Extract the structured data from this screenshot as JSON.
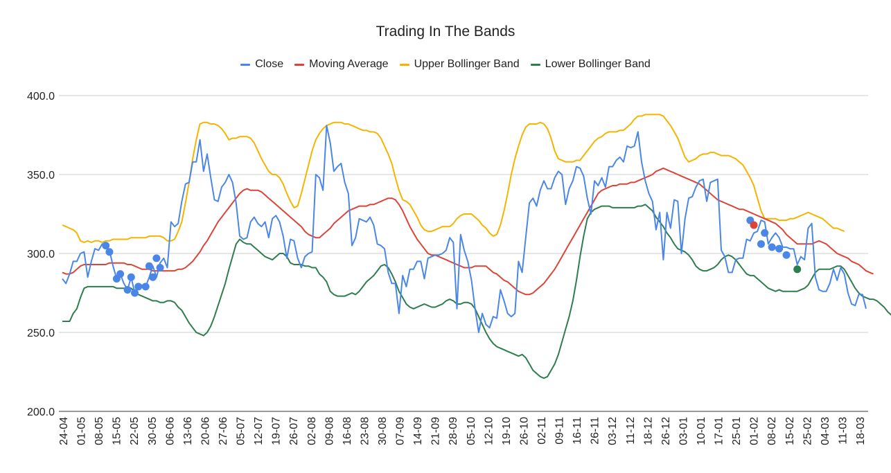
{
  "chart_data": {
    "type": "line",
    "title": "Trading In The Bands",
    "xlabel": "",
    "ylabel": "",
    "ylim": [
      200,
      400
    ],
    "yticks": [
      "200.0",
      "250.0",
      "300.0",
      "350.0",
      "400.0"
    ],
    "ytick_values": [
      200,
      250,
      300,
      350,
      400
    ],
    "grid": true,
    "legend_position": "top",
    "x_tick_labels": [
      "24-04",
      "01-05",
      "08-05",
      "15-05",
      "22-05",
      "30-05",
      "06-06",
      "13-06",
      "20-06",
      "27-06",
      "05-07",
      "12-07",
      "19-07",
      "26-07",
      "02-08",
      "09-08",
      "16-08",
      "23-08",
      "30-08",
      "07-09",
      "14-09",
      "21-09",
      "28-09",
      "05-10",
      "12-10",
      "19-10",
      "26-10",
      "02-11",
      "09-11",
      "16-11",
      "26-11",
      "03-12",
      "11-12",
      "18-12",
      "26-12",
      "03-01",
      "10-01",
      "17-01",
      "25-01",
      "01-02",
      "08-02",
      "15-02",
      "25-02",
      "04-03",
      "11-03",
      "18-03"
    ],
    "series": [
      {
        "name": "Close",
        "color": "#4a86e8",
        "values": [
          284,
          281,
          287,
          295,
          295,
          300,
          301,
          285,
          295,
          303,
          302,
          306,
          305,
          302,
          292,
          284,
          287,
          281,
          277,
          285,
          275,
          279,
          280,
          279,
          285,
          292,
          285,
          294,
          297,
          291,
          320,
          317,
          319,
          333,
          344,
          345,
          358,
          358,
          372,
          352,
          363,
          348,
          334,
          333,
          342,
          345,
          350,
          345,
          332,
          311,
          309,
          310,
          320,
          323,
          319,
          317,
          320,
          310,
          322,
          324,
          320,
          311,
          297,
          309,
          308,
          297,
          291,
          298,
          300,
          301,
          350,
          348,
          340,
          381,
          370,
          352,
          355,
          357,
          345,
          338,
          305,
          310,
          322,
          321,
          320,
          323,
          318,
          306,
          305,
          303,
          288,
          281,
          281,
          262,
          286,
          279,
          290,
          290,
          295,
          295,
          284,
          297,
          298,
          299,
          299,
          300,
          302,
          310,
          307,
          265,
          312,
          302,
          295,
          283,
          265,
          250,
          262,
          255,
          253,
          260,
          259,
          277,
          270,
          262,
          260,
          262,
          295,
          288,
          310,
          332,
          335,
          330,
          340,
          346,
          341,
          341,
          348,
          352,
          350,
          331,
          341,
          346,
          355,
          354,
          349,
          335,
          325,
          346,
          343,
          348,
          342,
          355,
          355,
          359,
          361,
          358,
          368,
          367,
          368,
          377,
          358,
          346,
          338,
          333,
          315,
          326,
          296,
          326,
          316,
          334,
          333,
          300,
          322,
          335,
          336,
          342,
          346,
          347,
          333,
          345,
          346,
          347,
          302,
          298,
          288,
          288,
          296,
          297,
          297,
          309,
          308,
          313,
          314,
          321,
          320,
          306,
          310,
          313,
          310,
          304,
          304,
          303,
          303,
          293,
          298,
          296,
          316,
          319,
          285,
          277,
          276,
          276,
          281,
          290,
          283,
          291,
          287,
          275,
          268,
          267,
          274,
          274,
          265
        ],
        "markers": [
          [
            12,
            305
          ],
          [
            13,
            301
          ],
          [
            15,
            284
          ],
          [
            16,
            287
          ],
          [
            18,
            277
          ],
          [
            19,
            285
          ],
          [
            20,
            275
          ],
          [
            21,
            279
          ],
          [
            23,
            279
          ],
          [
            24,
            292
          ],
          [
            25,
            285
          ],
          [
            26,
            297
          ],
          [
            27,
            291
          ],
          [
            190,
            321
          ],
          [
            193,
            306
          ],
          [
            194,
            313
          ],
          [
            196,
            304
          ],
          [
            198,
            303
          ],
          [
            200,
            299
          ]
        ]
      },
      {
        "name": "Moving Average",
        "color": "#db4437",
        "values": [
          288,
          287,
          287,
          288,
          290,
          292,
          293,
          293,
          293,
          293,
          293,
          293,
          293,
          294,
          294,
          294,
          294,
          294,
          293,
          293,
          292,
          291,
          290,
          290,
          290,
          289,
          289,
          289,
          289,
          289,
          289,
          289,
          290,
          290,
          291,
          293,
          295,
          298,
          301,
          305,
          308,
          312,
          316,
          320,
          323,
          326,
          329,
          332,
          335,
          338,
          340,
          341,
          340,
          340,
          340,
          339,
          337,
          335,
          333,
          331,
          329,
          327,
          325,
          323,
          321,
          319,
          317,
          314,
          312,
          311,
          310,
          310,
          312,
          314,
          316,
          319,
          321,
          323,
          325,
          327,
          328,
          329,
          330,
          330,
          330,
          331,
          331,
          332,
          333,
          334,
          335,
          335,
          334,
          331,
          327,
          322,
          317,
          313,
          309,
          306,
          303,
          300,
          299,
          299,
          298,
          297,
          296,
          295,
          294,
          293,
          292,
          291,
          291,
          291,
          292,
          292,
          292,
          292,
          290,
          288,
          287,
          285,
          283,
          282,
          280,
          278,
          276,
          275,
          274,
          274,
          275,
          277,
          279,
          281,
          284,
          287,
          290,
          294,
          298,
          302,
          306,
          310,
          314,
          318,
          322,
          326,
          330,
          334,
          338,
          340,
          341,
          342,
          343,
          343,
          344,
          344,
          344,
          345,
          345,
          346,
          347,
          348,
          349,
          350,
          352,
          353,
          354,
          353,
          352,
          351,
          350,
          349,
          348,
          347,
          346,
          345,
          344,
          342,
          340,
          338,
          336,
          334,
          333,
          332,
          331,
          330,
          329,
          328,
          328,
          327,
          326,
          325,
          324,
          323,
          322,
          321,
          320,
          319,
          317,
          315,
          312,
          310,
          308,
          306,
          306,
          306,
          306,
          306,
          307,
          308,
          307,
          306,
          304,
          302,
          300,
          299,
          298,
          297,
          295,
          294,
          293,
          291,
          289,
          288,
          287
        ],
        "markers": [
          [
            191,
            318
          ]
        ]
      },
      {
        "name": "Upper Bollinger Band",
        "color": "#f4b400",
        "values": [
          318,
          317,
          316,
          315,
          313,
          308,
          307,
          308,
          307,
          308,
          308,
          307,
          308,
          308,
          309,
          309,
          309,
          309,
          309,
          310,
          310,
          310,
          310,
          310,
          311,
          311,
          311,
          311,
          310,
          308,
          308,
          309,
          314,
          320,
          332,
          345,
          360,
          372,
          382,
          383,
          383,
          382,
          382,
          381,
          379,
          376,
          372,
          373,
          373,
          374,
          374,
          374,
          373,
          370,
          365,
          360,
          356,
          352,
          350,
          350,
          348,
          344,
          338,
          333,
          329,
          330,
          338,
          347,
          356,
          365,
          372,
          376,
          379,
          381,
          382,
          383,
          383,
          383,
          382,
          382,
          381,
          380,
          379,
          378,
          378,
          377,
          377,
          376,
          373,
          368,
          363,
          357,
          348,
          340,
          334,
          333,
          331,
          327,
          323,
          318,
          315,
          314,
          314,
          315,
          316,
          317,
          317,
          317,
          319,
          322,
          324,
          325,
          325,
          325,
          323,
          321,
          318,
          316,
          313,
          311,
          312,
          318,
          327,
          338,
          350,
          360,
          368,
          375,
          380,
          382,
          382,
          382,
          383,
          382,
          379,
          373,
          365,
          360,
          359,
          358,
          358,
          358,
          359,
          359,
          362,
          365,
          368,
          371,
          373,
          374,
          376,
          377,
          377,
          377,
          378,
          378,
          380,
          382,
          385,
          387,
          387,
          388,
          388,
          388,
          388,
          388,
          387,
          384,
          381,
          377,
          373,
          367,
          361,
          358,
          359,
          360,
          362,
          363,
          363,
          364,
          364,
          363,
          362,
          362,
          362,
          361,
          360,
          358,
          356,
          352,
          348,
          343,
          335,
          327,
          322,
          322,
          322,
          322,
          321,
          321,
          321,
          322,
          322,
          323,
          324,
          325,
          326,
          325,
          324,
          323,
          322,
          320,
          318,
          316,
          316,
          315,
          314
        ],
        "markers": []
      },
      {
        "name": "Lower Bollinger Band",
        "color": "#2e7d4f",
        "values": [
          257,
          257,
          257,
          262,
          265,
          272,
          278,
          279,
          279,
          279,
          279,
          279,
          279,
          279,
          279,
          278,
          278,
          278,
          278,
          278,
          276,
          274,
          273,
          272,
          271,
          270,
          270,
          269,
          269,
          270,
          270,
          269,
          266,
          264,
          260,
          256,
          253,
          250,
          249,
          248,
          250,
          254,
          260,
          267,
          274,
          281,
          290,
          298,
          306,
          309,
          307,
          306,
          306,
          304,
          302,
          300,
          298,
          297,
          296,
          298,
          300,
          300,
          298,
          294,
          293,
          293,
          293,
          292,
          292,
          291,
          291,
          287,
          285,
          282,
          276,
          274,
          273,
          273,
          273,
          274,
          275,
          274,
          276,
          279,
          282,
          284,
          286,
          289,
          292,
          293,
          291,
          287,
          282,
          276,
          272,
          268,
          266,
          265,
          266,
          267,
          268,
          267,
          266,
          266,
          267,
          268,
          270,
          271,
          270,
          268,
          268,
          269,
          269,
          268,
          265,
          260,
          255,
          250,
          246,
          243,
          241,
          240,
          239,
          238,
          237,
          236,
          235,
          236,
          234,
          230,
          226,
          224,
          222,
          221,
          222,
          226,
          230,
          236,
          244,
          252,
          260,
          270,
          283,
          298,
          311,
          322,
          326,
          328,
          329,
          330,
          330,
          330,
          329,
          329,
          329,
          329,
          329,
          329,
          329,
          330,
          330,
          331,
          329,
          327,
          323,
          320,
          317,
          313,
          310,
          306,
          303,
          302,
          301,
          299,
          296,
          292,
          290,
          289,
          289,
          290,
          291,
          293,
          296,
          298,
          299,
          298,
          296,
          293,
          290,
          287,
          286,
          286,
          284,
          282,
          280,
          278,
          277,
          276,
          277,
          276,
          276,
          276,
          276,
          276,
          277,
          278,
          280,
          284,
          288,
          290,
          290,
          290,
          290,
          291,
          292,
          292,
          290,
          286,
          282,
          278,
          275,
          273,
          272,
          271,
          271,
          270,
          268,
          266,
          263,
          261,
          259
        ],
        "markers": [
          [
            203,
            290
          ]
        ]
      }
    ]
  }
}
